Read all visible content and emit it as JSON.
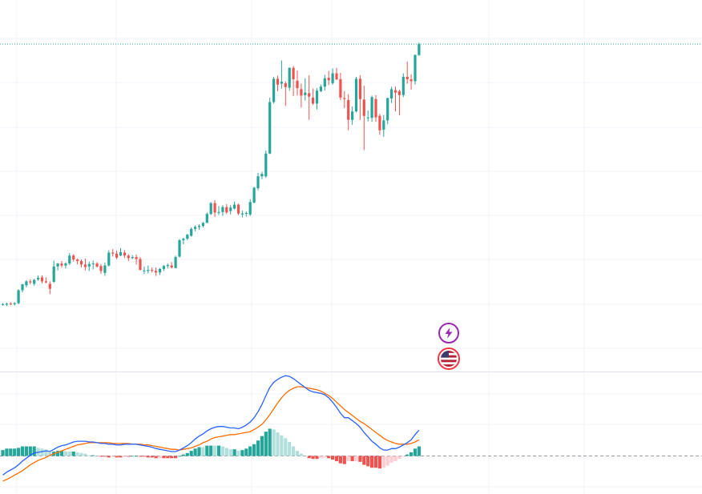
{
  "colors": {
    "up": "#26a69a",
    "down": "#ef5350",
    "up_light": "#b2dfdb",
    "down_light": "#ffcdd2",
    "grid": "#f0f3fa",
    "separator": "#e0e3eb",
    "macd_line": "#2962ff",
    "signal_line": "#ff6d00",
    "last_price_line": "#26a69a",
    "zero_line": "#9598a1",
    "marker_purple": "#9c27b0",
    "marker_red": "#f23645"
  },
  "icons": {
    "event_marker": "lightning-icon",
    "country_marker": "us-flag-icon"
  },
  "chart_data": [
    {
      "type": "candlestick",
      "ylim": [
        100,
        175
      ],
      "grid": true,
      "candles": [
        [
          113.6,
          113.8,
          113.3,
          113.6
        ],
        [
          113.5,
          113.9,
          113.2,
          113.7
        ],
        [
          113.7,
          114.0,
          113.4,
          113.6
        ],
        [
          113.6,
          114.0,
          113.3,
          113.8
        ],
        [
          113.8,
          116.6,
          113.6,
          116.4
        ],
        [
          116.4,
          117.7,
          116.0,
          117.6
        ],
        [
          117.4,
          118.4,
          117.0,
          118.2
        ],
        [
          118.2,
          118.6,
          117.6,
          118.0
        ],
        [
          117.7,
          118.7,
          117.3,
          118.5
        ],
        [
          118.6,
          119.4,
          118.3,
          118.9
        ],
        [
          119.0,
          119.4,
          117.8,
          118.2
        ],
        [
          118.2,
          119.0,
          117.8,
          118.0
        ],
        [
          117.7,
          118.2,
          115.6,
          116.7
        ],
        [
          118.1,
          122.4,
          117.9,
          121.2
        ],
        [
          121.2,
          121.9,
          120.4,
          121.8
        ],
        [
          121.8,
          122.3,
          121.0,
          121.4
        ],
        [
          121.4,
          122.1,
          120.8,
          121.8
        ],
        [
          121.8,
          123.9,
          121.5,
          123.4
        ],
        [
          123.4,
          123.7,
          122.2,
          122.6
        ],
        [
          122.6,
          122.8,
          121.6,
          122.3
        ],
        [
          122.3,
          122.6,
          121.0,
          121.6
        ],
        [
          121.6,
          122.8,
          120.4,
          121.1
        ],
        [
          121.2,
          122.2,
          120.3,
          121.7
        ],
        [
          121.8,
          122.4,
          120.6,
          121.8
        ],
        [
          121.8,
          122.1,
          121.0,
          121.2
        ],
        [
          121.3,
          121.7,
          119.7,
          120.3
        ],
        [
          119.9,
          122.0,
          119.3,
          121.4
        ],
        [
          121.4,
          124.5,
          121.2,
          124.0
        ],
        [
          124.0,
          124.7,
          123.2,
          123.8
        ],
        [
          123.8,
          124.4,
          122.7,
          123.0
        ],
        [
          123.4,
          124.9,
          123.3,
          124.1
        ],
        [
          124.0,
          124.5,
          122.9,
          123.4
        ],
        [
          123.4,
          123.7,
          122.3,
          122.9
        ],
        [
          122.9,
          123.5,
          122.7,
          123.1
        ],
        [
          123.1,
          123.6,
          121.6,
          122.7
        ],
        [
          122.7,
          123.1,
          120.4,
          120.5
        ],
        [
          120.4,
          121.2,
          119.7,
          120.4
        ],
        [
          120.3,
          121.4,
          119.8,
          120.5
        ],
        [
          120.5,
          121.0,
          120.0,
          120.4
        ],
        [
          120.3,
          121.0,
          119.3,
          120.0
        ],
        [
          120.0,
          120.9,
          119.5,
          120.7
        ],
        [
          120.7,
          121.5,
          120.3,
          121.3
        ],
        [
          121.3,
          121.8,
          120.8,
          121.5
        ],
        [
          121.4,
          122.1,
          120.8,
          121.0
        ],
        [
          120.9,
          123.4,
          120.8,
          123.1
        ],
        [
          123.2,
          126.8,
          123.0,
          126.5
        ],
        [
          126.5,
          127.0,
          125.7,
          126.8
        ],
        [
          126.8,
          127.8,
          126.5,
          127.6
        ],
        [
          127.4,
          129.1,
          127.2,
          128.8
        ],
        [
          128.8,
          129.5,
          128.3,
          129.2
        ],
        [
          129.2,
          129.7,
          128.6,
          129.4
        ],
        [
          129.4,
          130.2,
          129.1,
          130.0
        ],
        [
          130.0,
          132.1,
          130.0,
          131.8
        ],
        [
          131.8,
          134.2,
          131.6,
          134.0
        ],
        [
          134.0,
          134.6,
          131.2,
          132.1
        ],
        [
          132.2,
          133.4,
          131.6,
          132.2
        ],
        [
          132.2,
          133.6,
          131.4,
          133.2
        ],
        [
          133.2,
          133.8,
          131.8,
          132.1
        ],
        [
          132.4,
          133.6,
          131.7,
          133.1
        ],
        [
          132.9,
          134.3,
          132.7,
          133.7
        ],
        [
          133.7,
          133.9,
          131.6,
          131.9
        ],
        [
          131.7,
          132.5,
          131.1,
          131.9
        ],
        [
          131.9,
          132.3,
          131.3,
          132.0
        ],
        [
          131.7,
          134.8,
          131.4,
          134.2
        ],
        [
          134.1,
          137.3,
          134.0,
          137.1
        ],
        [
          137.0,
          140.1,
          136.6,
          139.4
        ],
        [
          139.4,
          140.3,
          138.8,
          139.9
        ],
        [
          139.4,
          144.6,
          139.1,
          144.0
        ],
        [
          144.0,
          155.3,
          143.9,
          154.4
        ],
        [
          154.4,
          159.5,
          154.1,
          159.1
        ],
        [
          159.1,
          159.7,
          156.6,
          157.9
        ],
        [
          158.1,
          162.8,
          157.1,
          158.5
        ],
        [
          158.2,
          158.6,
          153.6,
          157.4
        ],
        [
          157.3,
          161.4,
          156.7,
          161.3
        ],
        [
          161.3,
          161.7,
          155.6,
          159.0
        ],
        [
          158.7,
          160.8,
          155.7,
          157.2
        ],
        [
          157.0,
          158.1,
          153.3,
          155.7
        ],
        [
          155.8,
          159.2,
          154.7,
          156.3
        ],
        [
          156.2,
          159.8,
          150.8,
          155.5
        ],
        [
          155.3,
          157.1,
          153.8,
          154.1
        ],
        [
          154.1,
          157.2,
          152.9,
          156.7
        ],
        [
          156.6,
          157.9,
          156.4,
          157.5
        ],
        [
          157.5,
          159.9,
          156.7,
          159.2
        ],
        [
          159.3,
          160.7,
          157.8,
          158.8
        ],
        [
          158.2,
          161.2,
          157.9,
          160.2
        ],
        [
          160.2,
          161.3,
          158.8,
          159.0
        ],
        [
          159.0,
          160.3,
          154.8,
          155.3
        ],
        [
          155.2,
          156.6,
          153.2,
          155.0
        ],
        [
          154.8,
          156.0,
          148.7,
          150.8
        ],
        [
          150.8,
          153.5,
          149.8,
          152.5
        ],
        [
          152.5,
          159.5,
          152.3,
          159.1
        ],
        [
          159.1,
          159.8,
          150.8,
          155.0
        ],
        [
          154.9,
          157.7,
          144.7,
          151.6
        ],
        [
          151.2,
          152.7,
          150.5,
          151.3
        ],
        [
          151.2,
          155.7,
          150.4,
          155.4
        ],
        [
          155.0,
          155.8,
          150.4,
          151.3
        ],
        [
          151.6,
          152.0,
          147.8,
          148.7
        ],
        [
          148.8,
          151.8,
          147.4,
          150.7
        ],
        [
          150.7,
          155.3,
          149.9,
          155.2
        ],
        [
          155.1,
          157.5,
          154.2,
          157.0
        ],
        [
          156.8,
          157.5,
          152.5,
          156.3
        ],
        [
          156.6,
          156.9,
          151.7,
          155.8
        ],
        [
          155.8,
          160.2,
          155.4,
          159.5
        ],
        [
          159.5,
          162.6,
          158.1,
          159.0
        ],
        [
          159.0,
          160.0,
          156.9,
          158.6
        ],
        [
          158.6,
          164.0,
          157.9,
          163.9
        ],
        [
          163.9,
          166.4,
          163.7,
          166.1
        ]
      ]
    },
    {
      "type": "macd",
      "series": [
        {
          "values": [
            -2.6,
            -2.2,
            -1.9,
            -1.6,
            -1.2,
            -0.7,
            -0.3,
            0.1,
            0.4,
            0.5,
            0.6,
            0.7,
            0.6,
            0.9,
            1.2,
            1.4,
            1.5,
            1.7,
            1.9,
            2.0,
            2.0,
            2.0,
            1.9,
            1.9,
            1.8,
            1.7,
            1.7,
            1.6,
            1.6,
            1.5,
            1.5,
            1.6,
            1.6,
            1.6,
            1.6,
            1.5,
            1.4,
            1.3,
            1.2,
            1.0,
            0.9,
            0.8,
            0.7,
            0.6,
            0.6,
            0.8,
            1.1,
            1.4,
            1.8,
            2.3,
            2.7,
            3.0,
            3.4,
            3.7,
            3.9,
            4.0,
            4.0,
            3.9,
            3.8,
            3.8,
            3.7,
            3.9,
            4.2,
            4.6,
            5.2,
            6.0,
            7.0,
            8.2,
            9.3,
            10.0,
            10.4,
            10.7,
            10.9,
            10.8,
            10.5,
            10.1,
            9.7,
            9.3,
            8.9,
            8.7,
            8.6,
            8.5,
            8.3,
            7.9,
            7.3,
            6.6,
            5.8,
            5.2,
            5.2,
            4.8,
            4.4,
            3.9,
            3.2,
            2.6,
            2.0,
            1.6,
            1.1,
            0.8,
            0.8,
            1.0,
            1.0,
            1.2,
            1.5,
            1.8,
            2.2,
            2.9,
            3.5
          ]
        },
        {
          "values": [
            -3.4,
            -3.2,
            -2.9,
            -2.6,
            -2.3,
            -2.0,
            -1.6,
            -1.2,
            -0.9,
            -0.6,
            -0.4,
            -0.2,
            0.1,
            0.3,
            0.5,
            0.7,
            0.9,
            1.1,
            1.3,
            1.5,
            1.6,
            1.7,
            1.8,
            1.8,
            1.8,
            1.8,
            1.8,
            1.8,
            1.7,
            1.7,
            1.7,
            1.7,
            1.7,
            1.6,
            1.6,
            1.6,
            1.5,
            1.5,
            1.4,
            1.3,
            1.2,
            1.1,
            1.0,
            0.9,
            0.9,
            0.8,
            0.9,
            1.0,
            1.1,
            1.3,
            1.5,
            1.8,
            2.0,
            2.3,
            2.5,
            2.6,
            2.7,
            2.8,
            2.9,
            2.9,
            3.0,
            3.1,
            3.2,
            3.3,
            3.6,
            3.9,
            4.3,
            4.9,
            5.6,
            6.4,
            7.2,
            7.9,
            8.5,
            8.9,
            9.2,
            9.4,
            9.4,
            9.3,
            9.2,
            9.1,
            9.0,
            8.8,
            8.5,
            8.2,
            7.8,
            7.3,
            6.8,
            6.3,
            5.9,
            5.5,
            5.1,
            4.7,
            4.4,
            4.0,
            3.6,
            3.2,
            2.8,
            2.4,
            2.1,
            1.9,
            1.7,
            1.6,
            1.6,
            1.6,
            1.7,
            1.9,
            2.2
          ]
        }
      ]
    }
  ]
}
